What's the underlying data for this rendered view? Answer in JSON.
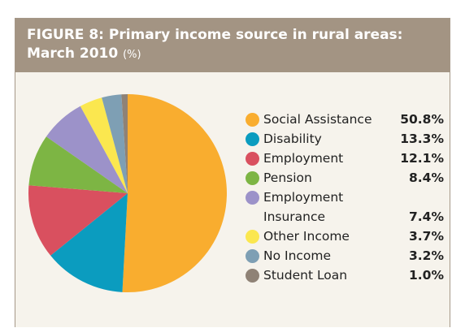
{
  "chart_data": {
    "type": "pie",
    "title": "FIGURE 8: Primary income source in rural areas: March 2010",
    "subtitle": "(%)",
    "categories": [
      "Social Assistance",
      "Disability",
      "Employment",
      "Pension",
      "Employment Insurance",
      "Other Income",
      "No Income",
      "Student Loan"
    ],
    "values": [
      50.8,
      13.3,
      12.1,
      8.4,
      7.4,
      3.7,
      3.2,
      1.0
    ],
    "value_labels": [
      "50.8%",
      "13.3%",
      "12.1%",
      "8.4%",
      "7.4%",
      "3.7%",
      "3.2%",
      "1.0%"
    ],
    "colors": [
      "#f9ad2f",
      "#0b9cbf",
      "#d9505f",
      "#7db544",
      "#9c92c9",
      "#fbe74f",
      "#7e9fb4",
      "#8f8276"
    ]
  }
}
